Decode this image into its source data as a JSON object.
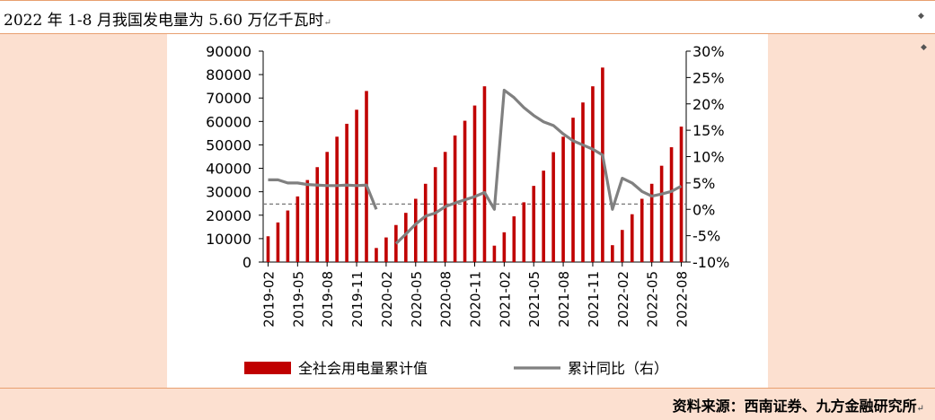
{
  "header": {
    "title": "2022 年 1-8 月我国发电量为 5.60 万亿千瓦时",
    "title_mark": "↵"
  },
  "footer": {
    "source": "资料来源：西南证券、九方金融研究所",
    "source_mark": "↵"
  },
  "colors": {
    "bar": "#c00000",
    "line": "#808080",
    "side_panel": "#fce0d0",
    "rule": "#e8a070"
  },
  "chart_data": {
    "type": "bar",
    "categories": [
      "2019-02",
      "2019-03",
      "2019-04",
      "2019-05",
      "2019-06",
      "2019-07",
      "2019-08",
      "2019-09",
      "2019-10",
      "2019-11",
      "2019-12",
      "2020-01",
      "2020-02",
      "2020-03",
      "2020-04",
      "2020-05",
      "2020-06",
      "2020-07",
      "2020-08",
      "2020-09",
      "2020-10",
      "2020-11",
      "2020-12",
      "2021-01",
      "2021-02",
      "2021-03",
      "2021-04",
      "2021-05",
      "2021-06",
      "2021-07",
      "2021-08",
      "2021-09",
      "2021-10",
      "2021-11",
      "2021-12",
      "2022-01",
      "2022-02",
      "2022-03",
      "2022-04",
      "2022-05",
      "2022-06",
      "2022-07",
      "2022-08"
    ],
    "x_tick_labels": [
      "2019-02",
      "2019-05",
      "2019-08",
      "2019-11",
      "2020-02",
      "2020-05",
      "2020-08",
      "2020-11",
      "2021-02",
      "2021-05",
      "2021-08",
      "2021-11",
      "2022-02",
      "2022-05",
      "2022-08"
    ],
    "series": [
      {
        "name": "全社会用电量累计值",
        "type": "bar",
        "axis": "left",
        "values": [
          11000,
          16900,
          22000,
          28000,
          35000,
          40500,
          47000,
          53500,
          59000,
          65000,
          73000,
          6000,
          10500,
          15800,
          21000,
          27000,
          33400,
          40500,
          47000,
          54000,
          60300,
          66800,
          75000,
          7000,
          12700,
          19500,
          25500,
          32500,
          39000,
          46900,
          53500,
          61600,
          68100,
          75000,
          83000,
          7200,
          13700,
          20400,
          27000,
          33400,
          41100,
          49000,
          57800
        ]
      },
      {
        "name": "累计同比（右）",
        "type": "line",
        "axis": "right",
        "values": [
          5.6,
          5.6,
          5.0,
          5.0,
          4.7,
          4.6,
          4.5,
          4.5,
          4.6,
          4.5,
          4.6,
          0,
          null,
          -6.5,
          -4.7,
          -2.8,
          -1.3,
          -0.7,
          0.5,
          1.2,
          1.8,
          2.4,
          3.2,
          0,
          22.6,
          21.2,
          19.3,
          17.8,
          16.6,
          15.9,
          14.3,
          13.0,
          12.2,
          11.4,
          10.3,
          0,
          5.9,
          5.0,
          3.4,
          2.5,
          2.9,
          3.4,
          4.4
        ]
      }
    ],
    "y_left": {
      "ylim": [
        0,
        90000
      ],
      "ticks": [
        "0",
        "10000",
        "20000",
        "30000",
        "40000",
        "50000",
        "60000",
        "70000",
        "80000",
        "90000"
      ]
    },
    "y_right": {
      "ylim": [
        -10,
        30
      ],
      "ticks": [
        "-10%",
        "-5%",
        "0%",
        "5%",
        "10%",
        "15%",
        "20%",
        "25%",
        "30%"
      ]
    },
    "reference_line": {
      "axis": "right",
      "value": 1
    },
    "legend": {
      "position": "bottom",
      "items": [
        "全社会用电量累计值",
        "累计同比（右）"
      ]
    }
  }
}
